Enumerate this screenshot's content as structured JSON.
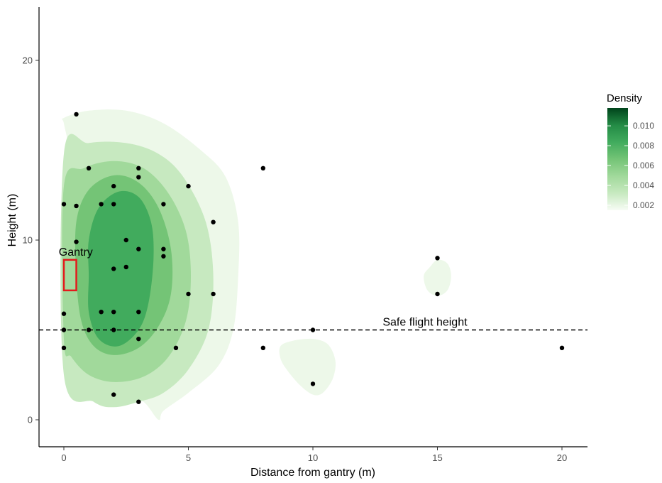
{
  "chart_data": {
    "type": "scatter",
    "title": "",
    "xlabel": "Distance from gantry (m)",
    "ylabel": "Height (m)",
    "xlim": [
      -1,
      21
    ],
    "ylim": [
      -1.5,
      23
    ],
    "x_ticks": [
      0,
      5,
      10,
      15,
      20
    ],
    "y_ticks": [
      0,
      10,
      20
    ],
    "grid": false,
    "points": [
      {
        "x": 0.5,
        "y": 17
      },
      {
        "x": 0,
        "y": 12
      },
      {
        "x": 0.5,
        "y": 11.9
      },
      {
        "x": 0.5,
        "y": 9.9
      },
      {
        "x": 0,
        "y": 5.9
      },
      {
        "x": 0,
        "y": 5
      },
      {
        "x": 0,
        "y": 4
      },
      {
        "x": 1,
        "y": 14
      },
      {
        "x": 1,
        "y": 5
      },
      {
        "x": 1.5,
        "y": 12
      },
      {
        "x": 1.5,
        "y": 6
      },
      {
        "x": 2,
        "y": 13
      },
      {
        "x": 2,
        "y": 12
      },
      {
        "x": 2,
        "y": 8.4
      },
      {
        "x": 2,
        "y": 6
      },
      {
        "x": 2,
        "y": 5
      },
      {
        "x": 2,
        "y": 1.4
      },
      {
        "x": 2.5,
        "y": 10
      },
      {
        "x": 2.5,
        "y": 8.5
      },
      {
        "x": 3,
        "y": 14
      },
      {
        "x": 3,
        "y": 13.5
      },
      {
        "x": 3,
        "y": 9.5
      },
      {
        "x": 3,
        "y": 6
      },
      {
        "x": 3,
        "y": 4.5
      },
      {
        "x": 3,
        "y": 1
      },
      {
        "x": 4,
        "y": 12
      },
      {
        "x": 4,
        "y": 9.5
      },
      {
        "x": 4,
        "y": 9.1
      },
      {
        "x": 4.5,
        "y": 4
      },
      {
        "x": 5,
        "y": 13
      },
      {
        "x": 5,
        "y": 7
      },
      {
        "x": 6,
        "y": 11
      },
      {
        "x": 6,
        "y": 7
      },
      {
        "x": 8,
        "y": 14
      },
      {
        "x": 8,
        "y": 4
      },
      {
        "x": 10,
        "y": 5
      },
      {
        "x": 10,
        "y": 2
      },
      {
        "x": 15,
        "y": 9
      },
      {
        "x": 15,
        "y": 7
      },
      {
        "x": 20,
        "y": 4
      }
    ],
    "density_levels": [
      0.002,
      0.004,
      0.006,
      0.008,
      0.01
    ],
    "density_colors": [
      "#edf8e9",
      "#c7e9c0",
      "#a1d99b",
      "#74c476",
      "#41ab5d",
      "#238b45"
    ],
    "contours": [
      {
        "level": 0.002,
        "regions": [
          [
            [
              0,
              16.8
            ],
            [
              1,
              17.2
            ],
            [
              2.5,
              17.2
            ],
            [
              4,
              16.5
            ],
            [
              5.5,
              15
            ],
            [
              6.5,
              13.5
            ],
            [
              7,
              11
            ],
            [
              7,
              8
            ],
            [
              6.8,
              5
            ],
            [
              6.2,
              3
            ],
            [
              5,
              1.5
            ],
            [
              4,
              0.5
            ],
            [
              3.8,
              0
            ],
            [
              3.2,
              1
            ],
            [
              2.5,
              1.2
            ],
            [
              1.5,
              2.2
            ],
            [
              0.5,
              2.6
            ],
            [
              0,
              2.8
            ],
            [
              0,
              14
            ],
            [
              0.2,
              15
            ],
            [
              0,
              16.5
            ]
          ],
          [
            [
              8.7,
              4.1
            ],
            [
              9.2,
              4.4
            ],
            [
              10,
              4.5
            ],
            [
              10.6,
              4.2
            ],
            [
              10.9,
              3.3
            ],
            [
              10.8,
              2.3
            ],
            [
              10.4,
              1.5
            ],
            [
              10,
              1.4
            ],
            [
              9.5,
              1.9
            ],
            [
              9.0,
              2.7
            ],
            [
              8.7,
              3.4
            ]
          ],
          [
            [
              14.7,
              8.5
            ],
            [
              15,
              8.9
            ],
            [
              15.4,
              8.7
            ],
            [
              15.55,
              8
            ],
            [
              15.4,
              7.2
            ],
            [
              15,
              6.9
            ],
            [
              14.6,
              7.2
            ],
            [
              14.45,
              8
            ]
          ]
        ]
      },
      {
        "level": 0.004,
        "regions": [
          [
            [
              0,
              14.8
            ],
            [
              1,
              15.4
            ],
            [
              2.5,
              15.4
            ],
            [
              3.8,
              14.8
            ],
            [
              4.8,
              13.5
            ],
            [
              5.7,
              11
            ],
            [
              6,
              8
            ],
            [
              5.8,
              5
            ],
            [
              5,
              2.8
            ],
            [
              4,
              1.5
            ],
            [
              3,
              1
            ],
            [
              2,
              0.7
            ],
            [
              1.2,
              1
            ],
            [
              0,
              2.5
            ]
          ]
        ]
      },
      {
        "level": 0.006,
        "regions": [
          [
            [
              0,
              13
            ],
            [
              0.8,
              14
            ],
            [
              2,
              14.4
            ],
            [
              3.2,
              14
            ],
            [
              4.2,
              12.6
            ],
            [
              4.9,
              10.5
            ],
            [
              5.1,
              8
            ],
            [
              4.9,
              5.5
            ],
            [
              4.2,
              3.5
            ],
            [
              3.2,
              2.4
            ],
            [
              2,
              2.1
            ],
            [
              1,
              2.5
            ],
            [
              0.3,
              3.5
            ],
            [
              0,
              4.5
            ]
          ]
        ]
      },
      {
        "level": 0.008,
        "regions": [
          [
            [
              0.5,
              11
            ],
            [
              1,
              12.8
            ],
            [
              2,
              13.6
            ],
            [
              3,
              13.2
            ],
            [
              3.8,
              11.8
            ],
            [
              4.3,
              9.5
            ],
            [
              4.3,
              7
            ],
            [
              3.8,
              5.2
            ],
            [
              3,
              4
            ],
            [
              2,
              3.6
            ],
            [
              1.2,
              4.1
            ],
            [
              0.7,
              5.5
            ],
            [
              0.5,
              8
            ]
          ]
        ]
      },
      {
        "level": 0.01,
        "regions": [
          [
            [
              1,
              10
            ],
            [
              1.4,
              11.8
            ],
            [
              2.2,
              12.7
            ],
            [
              3,
              12.4
            ],
            [
              3.5,
              11
            ],
            [
              3.6,
              9
            ],
            [
              3.4,
              6.5
            ],
            [
              3,
              5
            ],
            [
              2.2,
              4.1
            ],
            [
              1.4,
              4.5
            ],
            [
              1,
              6
            ],
            [
              1,
              8
            ]
          ]
        ]
      }
    ],
    "reference_line": {
      "y": 5,
      "label": "Safe flight height",
      "style": "dashed",
      "label_x": 14.5
    },
    "gantry": {
      "label": "Gantry",
      "x0": 0,
      "x1": 0.5,
      "y0": 7.2,
      "y1": 8.9,
      "color": "#e41a1c"
    },
    "legend": {
      "title": "Density",
      "placement": "right",
      "range": [
        0.0015,
        0.0118
      ],
      "labels": [
        "0.010",
        "0.008",
        "0.006",
        "0.004",
        "0.002"
      ],
      "label_values": [
        0.01,
        0.008,
        0.006,
        0.004,
        0.002
      ],
      "gradient": [
        "#00441b",
        "#238b45",
        "#41ab5d",
        "#74c476",
        "#a1d99b",
        "#c7e9c0",
        "#f7fcf5"
      ]
    }
  }
}
